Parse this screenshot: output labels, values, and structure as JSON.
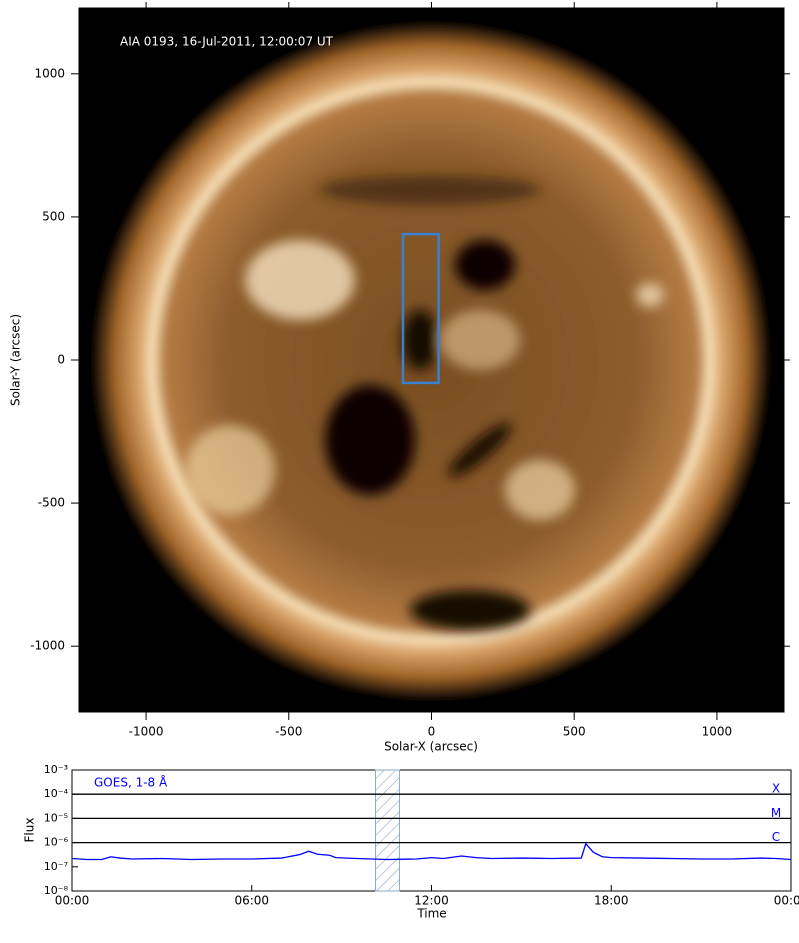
{
  "chart_data": [
    {
      "type": "image",
      "annotation": "AIA 0193, 16-Jul-2011, 12:00:07 UT",
      "xlabel": "Solar-X (arcsec)",
      "ylabel": "Solar-Y (arcsec)",
      "xlim": [
        -1235,
        1235
      ],
      "ylim": [
        -1230,
        1230
      ],
      "xticks": [
        -1000,
        -500,
        0,
        500,
        1000
      ],
      "yticks": [
        -1000,
        -500,
        0,
        500,
        1000
      ],
      "region": {
        "x": [
          -100,
          25
        ],
        "y": [
          -80,
          440
        ],
        "color": "#3a7fd0"
      }
    },
    {
      "type": "line",
      "xlabel": "Time",
      "ylabel": "Flux",
      "log_y": true,
      "xlim": [
        0,
        24
      ],
      "ylim": [
        1e-08,
        0.001
      ],
      "xticks": [
        {
          "value": 0,
          "label": "00:00"
        },
        {
          "value": 6,
          "label": "06:00"
        },
        {
          "value": 12,
          "label": "12:00"
        },
        {
          "value": 18,
          "label": "18:00"
        },
        {
          "value": 24,
          "label": "00:00"
        }
      ],
      "yticks": [
        {
          "value": 1e-08,
          "label": "10⁻⁸"
        },
        {
          "value": 1e-07,
          "label": "10⁻⁷"
        },
        {
          "value": 1e-06,
          "label": "10⁻⁶"
        },
        {
          "value": 1e-05,
          "label": "10⁻⁵"
        },
        {
          "value": 0.0001,
          "label": "10⁻⁴"
        },
        {
          "value": 0.001,
          "label": "10⁻³"
        }
      ],
      "levels": [
        {
          "value": 0.0001,
          "label": "X"
        },
        {
          "value": 1e-05,
          "label": "M"
        },
        {
          "value": 1e-06,
          "label": "C"
        }
      ],
      "highlight": [
        10.13,
        10.93
      ],
      "x": [
        0,
        0.5,
        1.0,
        1.3,
        1.6,
        2,
        3,
        4,
        5,
        6,
        7,
        7.6,
        7.9,
        8.2,
        8.6,
        8.8,
        9.5,
        10.5,
        11.5,
        12,
        12.4,
        13,
        13.5,
        14,
        15,
        16,
        17,
        17.15,
        17.4,
        17.7,
        18,
        19,
        20,
        21,
        22,
        23,
        23.5,
        24
      ],
      "series": [
        {
          "name": "GOES, 1-8 Å",
          "color": "#0000ff",
          "values": [
            2.2e-07,
            2e-07,
            2e-07,
            2.6e-07,
            2.3e-07,
            2.1e-07,
            2.2e-07,
            2e-07,
            2.1e-07,
            2.1e-07,
            2.3e-07,
            3.2e-07,
            4.4e-07,
            3.3e-07,
            3e-07,
            2.4e-07,
            2.2e-07,
            2e-07,
            2.1e-07,
            2.4e-07,
            2.2e-07,
            2.8e-07,
            2.4e-07,
            2.2e-07,
            2.3e-07,
            2.2e-07,
            2.3e-07,
            9e-07,
            4e-07,
            2.6e-07,
            2.4e-07,
            2.3e-07,
            2.2e-07,
            2.1e-07,
            2.1e-07,
            2.3e-07,
            2.2e-07,
            2e-07
          ]
        }
      ]
    }
  ]
}
